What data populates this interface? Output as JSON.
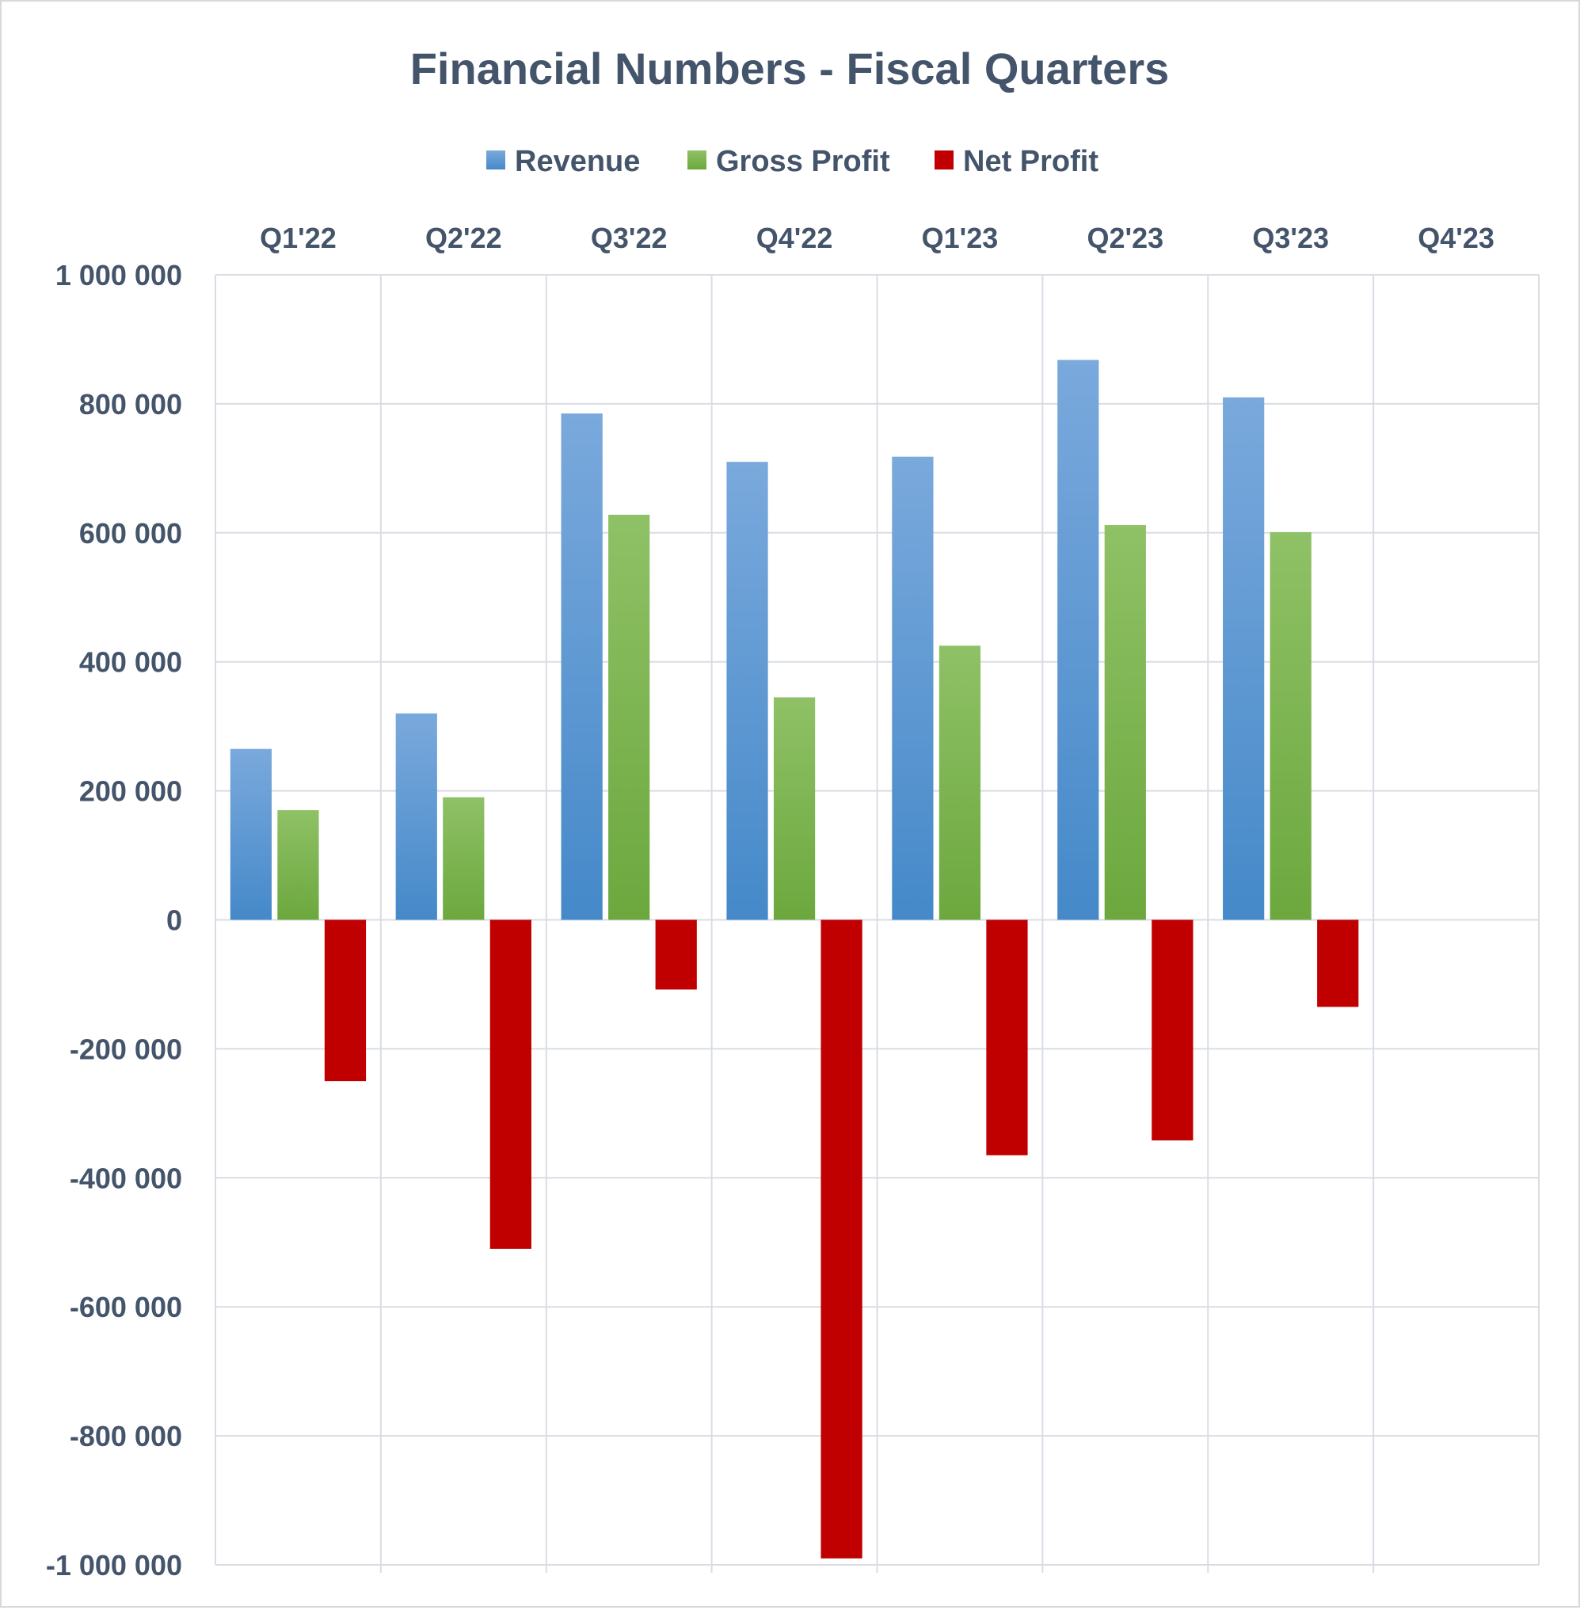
{
  "colors": {
    "text": "#44546a",
    "grid": "#d9dde3",
    "revenue_light": "#7aa9dc",
    "revenue_dark": "#4589c9",
    "gross_light": "#8fc166",
    "gross_dark": "#6ca83e",
    "net": "#c00000"
  },
  "chart_data": {
    "type": "bar",
    "title": "Financial Numbers - Fiscal Quarters",
    "categories": [
      "Q1'22",
      "Q2'22",
      "Q3'22",
      "Q4'22",
      "Q1'23",
      "Q2'23",
      "Q3'23",
      "Q4'23"
    ],
    "series": [
      {
        "name": "Revenue",
        "values": [
          265000,
          320000,
          785000,
          710000,
          718000,
          868000,
          810000,
          null
        ]
      },
      {
        "name": "Gross Profit",
        "values": [
          170000,
          190000,
          628000,
          345000,
          425000,
          612000,
          601000,
          null
        ]
      },
      {
        "name": "Net Profit",
        "values": [
          -250000,
          -510000,
          -108000,
          -990000,
          -365000,
          -342000,
          -135000,
          null
        ]
      }
    ],
    "ylim": [
      -1000000,
      1000000
    ],
    "yticks": [
      1000000,
      800000,
      600000,
      400000,
      200000,
      0,
      -200000,
      -400000,
      -600000,
      -800000,
      -1000000
    ],
    "ytick_labels": [
      "1 000 000",
      "800 000",
      "600 000",
      "400 000",
      "200 000",
      "0",
      "-200 000",
      "-400 000",
      "-600 000",
      "-800 000",
      "-1 000 000"
    ],
    "legend_position": "top-center",
    "category_axis_position": "top",
    "grid": true
  }
}
